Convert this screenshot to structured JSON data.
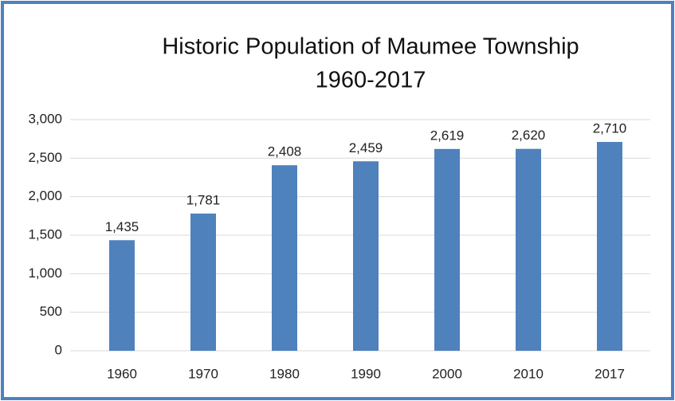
{
  "chart_data": {
    "type": "bar",
    "title": "Historic Population of Maumee Township",
    "subtitle": "1960-2017",
    "categories": [
      "1960",
      "1970",
      "1980",
      "1990",
      "2000",
      "2010",
      "2017"
    ],
    "values": [
      1435,
      1781,
      2408,
      2459,
      2619,
      2620,
      2710
    ],
    "value_labels": [
      "1,435",
      "1,781",
      "2,408",
      "2,459",
      "2,619",
      "2,620",
      "2,710"
    ],
    "color": "#4f81bd",
    "ylim": [
      0,
      3000
    ],
    "yticks": [
      0,
      500,
      {
        "value": 1000,
        "label": "1,000"
      },
      {
        "value": 1500,
        "label": "1,500"
      },
      {
        "value": 2000,
        "label": "2,000"
      },
      {
        "value": 2500,
        "label": "2,500"
      },
      {
        "value": 3000,
        "label": "3,000"
      }
    ],
    "grid": true
  }
}
